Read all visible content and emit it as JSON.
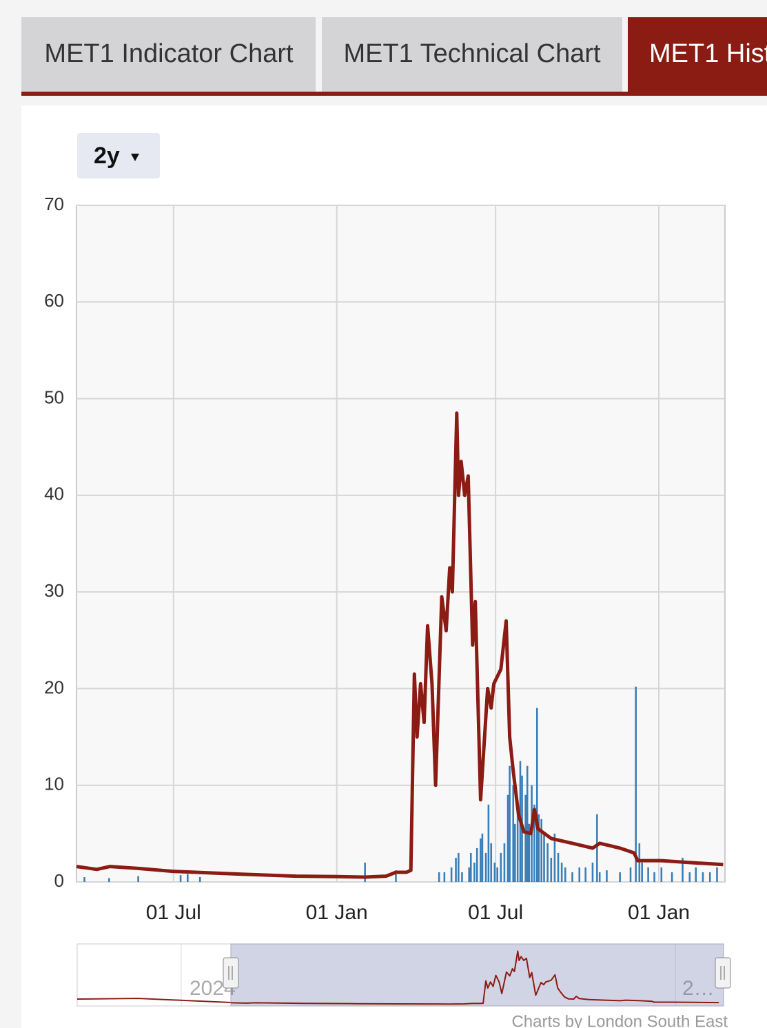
{
  "tabs": [
    "MET1 Indicator Chart",
    "MET1 Technical Chart",
    "MET1 Hist"
  ],
  "range_selector": "2y",
  "chart_data": {
    "type": "line",
    "xlim": [
      0,
      735
    ],
    "ylim": [
      0,
      70
    ],
    "yticks": [
      0,
      10,
      20,
      30,
      40,
      50,
      60,
      70
    ],
    "xticks": [
      {
        "value": 110,
        "label": "01 Jul"
      },
      {
        "value": 295,
        "label": "01 Jan"
      },
      {
        "value": 475,
        "label": "01 Jul"
      },
      {
        "value": 660,
        "label": "01 Jan"
      }
    ],
    "grid": true,
    "series": [
      {
        "type": "line",
        "color": "#8b1c13",
        "x": [
          0,
          23,
          38,
          70,
          109,
          187,
          249,
          295,
          327,
          351,
          362,
          374,
          379,
          383,
          386,
          390,
          394,
          398,
          403,
          407,
          414,
          419,
          423,
          426,
          431,
          433,
          436,
          440,
          444,
          449,
          452,
          458,
          466,
          470,
          473,
          481,
          487,
          491,
          495,
          501,
          507,
          515,
          519,
          523,
          538,
          562,
          585,
          593,
          616,
          632,
          636,
          663,
          695,
          733
        ],
        "values": [
          1.6,
          1.3,
          1.6,
          1.4,
          1.1,
          0.8,
          0.6,
          0.55,
          0.5,
          0.6,
          1.0,
          1.0,
          1.2,
          21.5,
          15,
          20.5,
          16.5,
          26.5,
          20.5,
          10,
          29.5,
          26,
          32.5,
          30,
          48.5,
          40,
          43.5,
          40,
          42,
          24.5,
          29,
          8.5,
          20,
          18,
          20.5,
          22,
          27,
          15,
          11.5,
          7,
          5.2,
          5,
          7.5,
          5.5,
          4.5,
          4,
          3.5,
          4,
          3.5,
          3,
          2.2,
          2.2,
          2.0,
          1.8
        ]
      },
      {
        "type": "bar",
        "color": "#3a7fb8",
        "x": [
          9,
          37,
          70,
          118,
          126,
          140,
          327,
          362,
          411,
          417,
          425,
          430,
          433,
          437,
          445,
          447,
          451,
          454,
          458,
          460,
          464,
          467,
          470,
          474,
          477,
          481,
          485,
          489,
          491,
          495,
          497,
          500,
          503,
          505,
          509,
          511,
          513,
          516,
          519,
          522,
          524,
          527,
          530,
          534,
          538,
          542,
          546,
          550,
          554,
          562,
          570,
          577,
          585,
          590,
          593,
          601,
          616,
          628,
          634,
          638,
          641,
          648,
          655,
          663,
          675,
          687,
          695,
          702,
          710,
          718,
          726
        ],
        "values": [
          0.5,
          0.4,
          0.6,
          0.7,
          0.8,
          0.5,
          2,
          1.2,
          1,
          1,
          1.5,
          2.5,
          3,
          1,
          1.5,
          3,
          2,
          3.5,
          4.5,
          5,
          3,
          8,
          4,
          2,
          1.5,
          3,
          4,
          9,
          12,
          10,
          6,
          8,
          12.5,
          11,
          9,
          12,
          6,
          10,
          8,
          18,
          7,
          6.5,
          5,
          4,
          2.5,
          5,
          3,
          2,
          1.5,
          1,
          1.5,
          1.5,
          2,
          7,
          1,
          1.2,
          1,
          1.5,
          20.2,
          4,
          2,
          1.5,
          1,
          1.5,
          1,
          2.5,
          1,
          1.5,
          1,
          1,
          1.5
        ]
      }
    ],
    "navigator_labels": [
      "2024",
      "2…"
    ]
  },
  "footer": "Charts by London South East"
}
